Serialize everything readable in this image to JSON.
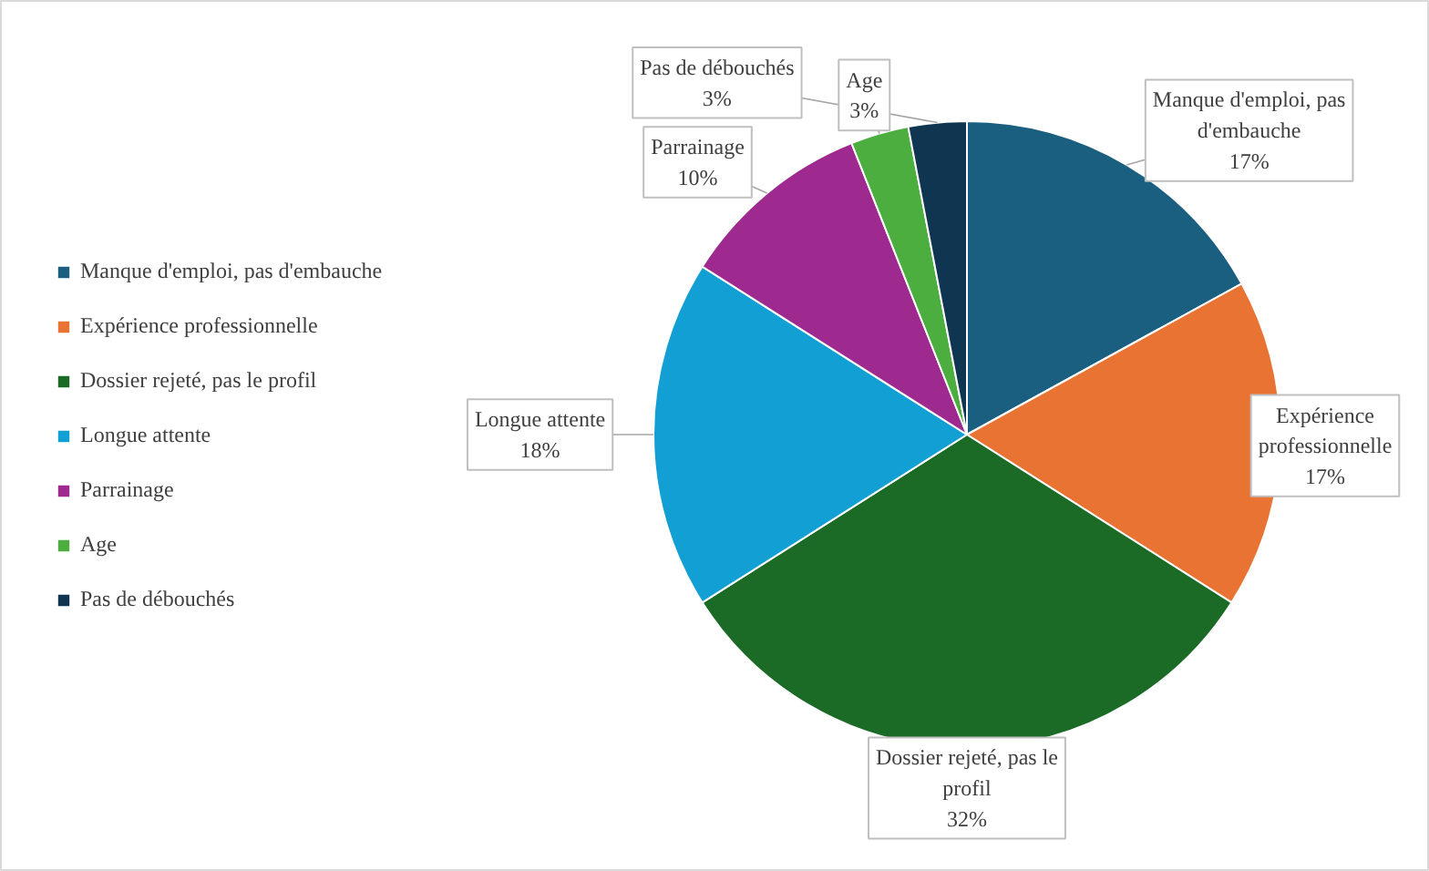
{
  "chart_data": {
    "type": "pie",
    "categories": [
      "Manque d'emploi, pas d'embauche",
      "Expérience professionnelle",
      "Dossier rejeté, pas le profil",
      "Longue attente",
      "Parrainage",
      "Age",
      "Pas de débouchés"
    ],
    "values": [
      17,
      17,
      32,
      18,
      10,
      3,
      3
    ],
    "colors": [
      "#1a5f80",
      "#e97332",
      "#1b6b27",
      "#129fd3",
      "#9e2a8f",
      "#4bae3f",
      "#0f3550"
    ],
    "value_labels": [
      "17%",
      "17%",
      "32%",
      "18%",
      "10%",
      "3%",
      "3%"
    ],
    "legend": "left"
  }
}
